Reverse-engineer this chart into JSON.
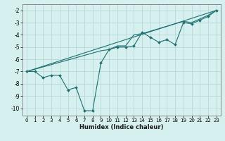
{
  "xlabel": "Humidex (Indice chaleur)",
  "bg_color": "#d6efef",
  "grid_color": "#b8d8d8",
  "line_color": "#1e7070",
  "xlim": [
    -0.5,
    23.5
  ],
  "ylim": [
    -10.6,
    -1.5
  ],
  "yticks": [
    -10,
    -9,
    -8,
    -7,
    -6,
    -5,
    -4,
    -3,
    -2
  ],
  "xticks": [
    0,
    1,
    2,
    3,
    4,
    5,
    6,
    7,
    8,
    9,
    10,
    11,
    12,
    13,
    14,
    15,
    16,
    17,
    18,
    19,
    20,
    21,
    22,
    23
  ],
  "data_x": [
    0,
    1,
    2,
    3,
    4,
    5,
    6,
    7,
    8,
    9,
    10,
    11,
    12,
    13,
    14,
    15,
    16,
    17,
    18,
    19,
    20,
    21,
    22,
    23
  ],
  "data_y": [
    -7.0,
    -7.0,
    -7.5,
    -7.3,
    -7.3,
    -8.5,
    -8.3,
    -10.2,
    -10.2,
    -6.3,
    -5.2,
    -5.0,
    -5.0,
    -4.9,
    -3.8,
    -4.2,
    -4.6,
    -4.4,
    -4.8,
    -3.0,
    -3.1,
    -2.8,
    -2.5,
    -2.0
  ],
  "trend_x": [
    0,
    23
  ],
  "trend_y": [
    -7.0,
    -2.0
  ],
  "smooth_x": [
    0,
    9,
    10,
    11,
    12,
    13,
    14,
    19,
    20,
    21,
    22,
    23
  ],
  "smooth_y": [
    -7.0,
    -5.3,
    -5.2,
    -4.9,
    -4.9,
    -4.0,
    -3.9,
    -2.9,
    -3.0,
    -2.7,
    -2.4,
    -2.0
  ]
}
